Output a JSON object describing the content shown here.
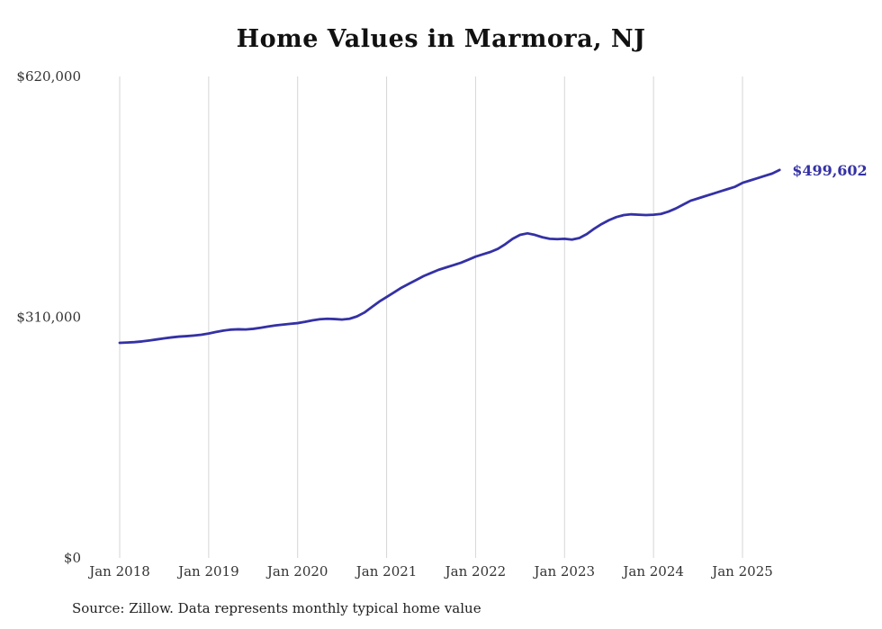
{
  "chart": {
    "title": "Home Values in Marmora, NJ",
    "source_note": "Source: Zillow. Data represents monthly typical home value",
    "end_label": "$499,602",
    "line_color": "#3431a5",
    "grid_color": "#d6d6d6",
    "title_color": "#111111",
    "axis_label_color": "#333333"
  },
  "chart_data": {
    "type": "line",
    "title": "Home Values in Marmora, NJ",
    "source": "Source: Zillow. Data represents monthly typical home value",
    "x_start": "2018-01",
    "x_end": "2025-06",
    "x_interval": "month",
    "x_tick_labels": [
      "Jan 2018",
      "Jan 2019",
      "Jan 2020",
      "Jan 2021",
      "Jan 2022",
      "Jan 2023",
      "Jan 2024",
      "Jan 2025"
    ],
    "y_ticks": [
      {
        "value": 0,
        "label": "$0"
      },
      {
        "value": 310000,
        "label": "$310,000"
      },
      {
        "value": 620000,
        "label": "$620,000"
      }
    ],
    "ylim": [
      0,
      620000
    ],
    "grid": "vertical-only",
    "legend": "none",
    "last_value": 499602,
    "last_value_label": "$499,602",
    "series": [
      {
        "name": "Monthly typical home value",
        "values": [
          277000,
          277400,
          277900,
          278800,
          280000,
          281400,
          282800,
          284000,
          285000,
          285600,
          286400,
          287400,
          289000,
          291000,
          292800,
          294000,
          294400,
          294200,
          295000,
          296400,
          298000,
          299400,
          300400,
          301400,
          302400,
          304000,
          306000,
          307400,
          308000,
          307600,
          307000,
          308000,
          311000,
          316000,
          323000,
          330000,
          336000,
          342000,
          348000,
          353000,
          358000,
          363000,
          367000,
          371000,
          374000,
          377000,
          380000,
          384000,
          388000,
          391000,
          394000,
          398000,
          404000,
          411000,
          416000,
          418000,
          416000,
          413000,
          411000,
          410500,
          411000,
          410000,
          412000,
          417000,
          424000,
          430000,
          435000,
          439000,
          441500,
          442500,
          442000,
          441500,
          442000,
          443000,
          446000,
          450000,
          455000,
          460000,
          463000,
          466000,
          469000,
          472000,
          475000,
          478000,
          483000,
          486000,
          489000,
          492000,
          495000,
          499602
        ]
      }
    ]
  }
}
